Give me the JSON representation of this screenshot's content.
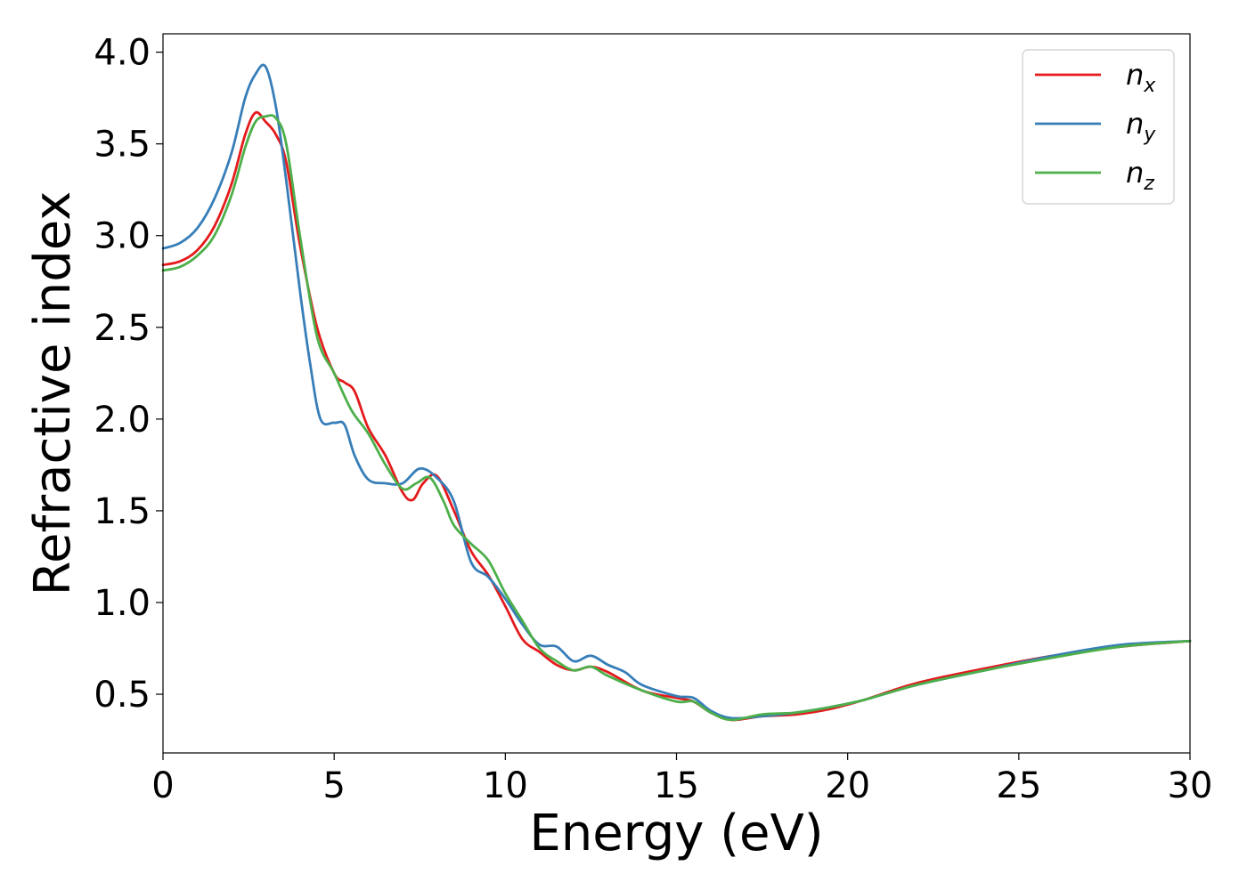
{
  "chart_data": {
    "type": "line",
    "title": "",
    "xlabel": "Energy (eV)",
    "ylabel": "Refractive index",
    "xlim": [
      0,
      30
    ],
    "ylim": [
      0.18,
      4.1
    ],
    "xticks": [
      "0",
      "5",
      "10",
      "15",
      "20",
      "25",
      "30"
    ],
    "yticks": [
      "0.5",
      "1.0",
      "1.5",
      "2.0",
      "2.5",
      "3.0",
      "3.5",
      "4.0"
    ],
    "grid": false,
    "legend_position": "top-right",
    "series": [
      {
        "name": "n",
        "subscript": "x",
        "color": "#e41a1c",
        "x": [
          0,
          0.5,
          1.0,
          1.5,
          2.0,
          2.4,
          2.7,
          3.0,
          3.3,
          3.6,
          4.0,
          4.5,
          5.0,
          5.3,
          5.6,
          6.0,
          6.5,
          7.0,
          7.3,
          7.6,
          8.0,
          8.5,
          9.0,
          9.5,
          10.0,
          10.5,
          11.0,
          11.5,
          12.0,
          12.5,
          13.0,
          14.0,
          15.0,
          15.5,
          16.0,
          16.6,
          17.5,
          18.5,
          19.5,
          20.5,
          22.0,
          24.0,
          26.0,
          28.0,
          30.0
        ],
        "y": [
          2.84,
          2.86,
          2.92,
          3.05,
          3.28,
          3.55,
          3.67,
          3.62,
          3.55,
          3.4,
          2.95,
          2.5,
          2.25,
          2.2,
          2.15,
          1.95,
          1.8,
          1.6,
          1.56,
          1.65,
          1.69,
          1.5,
          1.28,
          1.15,
          0.98,
          0.8,
          0.73,
          0.66,
          0.63,
          0.65,
          0.62,
          0.52,
          0.48,
          0.46,
          0.4,
          0.36,
          0.38,
          0.39,
          0.42,
          0.47,
          0.56,
          0.64,
          0.71,
          0.76,
          0.79
        ]
      },
      {
        "name": "n",
        "subscript": "y",
        "color": "#377eb8",
        "x": [
          0,
          0.5,
          1.0,
          1.5,
          2.0,
          2.4,
          2.7,
          3.0,
          3.3,
          3.6,
          4.0,
          4.3,
          4.6,
          5.0,
          5.3,
          5.6,
          6.0,
          6.5,
          7.0,
          7.5,
          8.0,
          8.5,
          9.0,
          9.5,
          10.0,
          10.5,
          11.0,
          11.5,
          12.0,
          12.5,
          13.0,
          13.5,
          14.0,
          15.0,
          15.5,
          16.0,
          16.6,
          17.5,
          18.5,
          19.5,
          20.5,
          22.0,
          24.0,
          26.0,
          28.0,
          30.0
        ],
        "y": [
          2.93,
          2.96,
          3.04,
          3.2,
          3.45,
          3.75,
          3.88,
          3.92,
          3.7,
          3.3,
          2.7,
          2.3,
          2.0,
          1.98,
          1.97,
          1.8,
          1.67,
          1.65,
          1.65,
          1.73,
          1.68,
          1.55,
          1.22,
          1.14,
          1.02,
          0.88,
          0.77,
          0.76,
          0.68,
          0.71,
          0.66,
          0.62,
          0.55,
          0.49,
          0.48,
          0.41,
          0.37,
          0.38,
          0.4,
          0.43,
          0.47,
          0.55,
          0.63,
          0.71,
          0.77,
          0.79
        ]
      },
      {
        "name": "n",
        "subscript": "z",
        "color": "#4daf4a",
        "x": [
          0,
          0.5,
          1.0,
          1.5,
          2.0,
          2.4,
          2.7,
          3.0,
          3.3,
          3.6,
          4.0,
          4.5,
          5.0,
          5.5,
          6.0,
          6.5,
          7.0,
          7.4,
          7.8,
          8.2,
          8.5,
          9.0,
          9.5,
          10.0,
          10.5,
          11.0,
          11.5,
          12.0,
          12.5,
          13.0,
          14.0,
          15.0,
          15.5,
          16.0,
          16.6,
          17.5,
          18.5,
          19.5,
          20.5,
          22.0,
          24.0,
          26.0,
          28.0,
          30.0
        ],
        "y": [
          2.81,
          2.83,
          2.89,
          3.0,
          3.22,
          3.48,
          3.62,
          3.65,
          3.64,
          3.5,
          3.0,
          2.45,
          2.25,
          2.05,
          1.92,
          1.75,
          1.62,
          1.65,
          1.68,
          1.55,
          1.42,
          1.32,
          1.23,
          1.05,
          0.9,
          0.75,
          0.68,
          0.63,
          0.65,
          0.6,
          0.52,
          0.46,
          0.46,
          0.4,
          0.36,
          0.39,
          0.4,
          0.43,
          0.47,
          0.55,
          0.63,
          0.7,
          0.76,
          0.79
        ]
      }
    ]
  }
}
